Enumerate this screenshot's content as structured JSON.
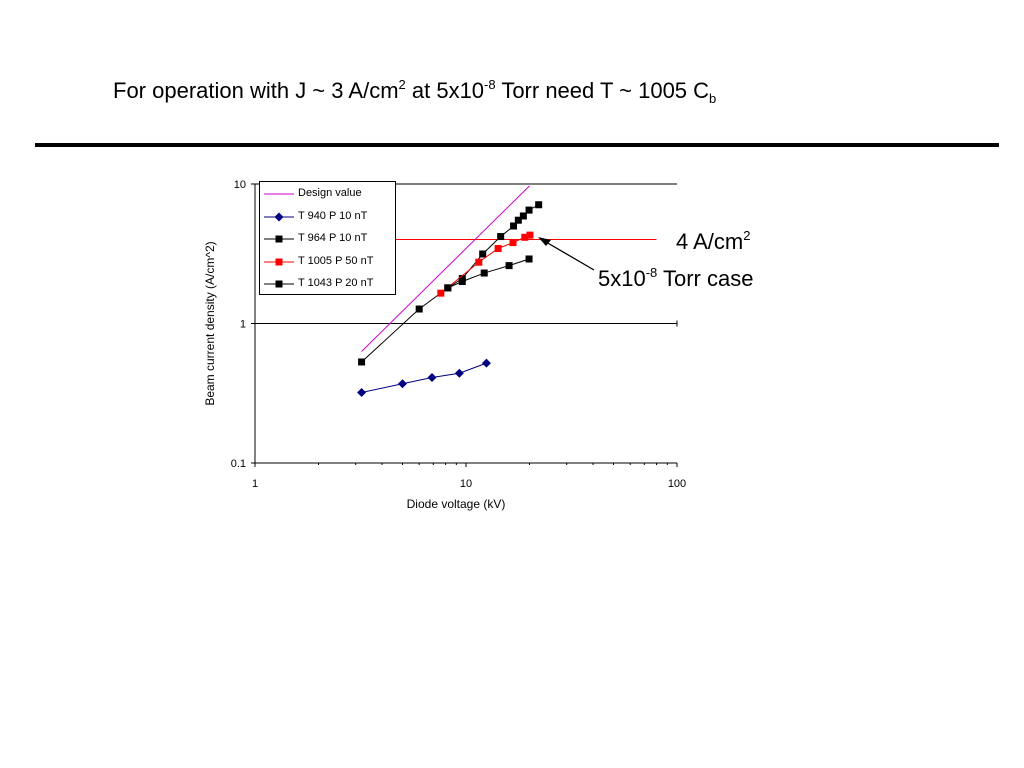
{
  "slide": {
    "title_main": "For operation with J ~ 3 A/cm",
    "title_sup1": "2",
    "title_mid": " at 5x10",
    "title_sup2": "-8",
    "title_end": " Torr need T  ~ 1005 C",
    "title_sub": "b"
  },
  "annotations": {
    "current_label": "4 A/cm",
    "current_sup": "2",
    "case_prefix": "5x10",
    "case_sup": "-8",
    "case_suffix": " Torr case"
  },
  "colors": {
    "design": "#cc00cc",
    "t940": "#000080",
    "t964": "#000000",
    "t1005": "#ff0000",
    "t1043": "#000000",
    "hline": "#ff0000"
  },
  "chart_data": {
    "type": "scatter",
    "xscale": "log",
    "yscale": "log",
    "xlabel": "Diode voltage (kV)",
    "ylabel": "Beam current density (A/cm^2)",
    "xlim": [
      1,
      100
    ],
    "ylim": [
      0.1,
      10
    ],
    "xticks": [
      "1",
      "10",
      "100"
    ],
    "yticks": [
      "10",
      "1",
      "0.1"
    ],
    "legend_position": "top-left",
    "grid": "major y only",
    "reference_line": {
      "y": 4,
      "x": [
        4.5,
        80
      ]
    },
    "series": [
      {
        "name": "Design value",
        "marker": "none",
        "x": [
          3.2,
          20
        ],
        "y": [
          0.63,
          9.7
        ]
      },
      {
        "name": "T 940 P 10 nT",
        "marker": "diamond",
        "x": [
          3.2,
          5.0,
          6.9,
          9.3,
          12.5
        ],
        "y": [
          0.32,
          0.37,
          0.41,
          0.44,
          0.52
        ]
      },
      {
        "name": "T 964 P 10 nT",
        "marker": "square",
        "x": [
          3.2,
          6.0,
          8.2,
          9.6,
          12.0,
          14.6,
          16.8,
          17.7,
          18.7,
          19.9,
          22.1
        ],
        "y": [
          0.53,
          1.27,
          1.8,
          2.1,
          3.15,
          4.2,
          5.0,
          5.5,
          5.9,
          6.5,
          7.1
        ]
      },
      {
        "name": "T 1005 P 50 nT",
        "marker": "square",
        "x": [
          7.6,
          11.5,
          14.2,
          16.7,
          19.0,
          20.1
        ],
        "y": [
          1.65,
          2.75,
          3.45,
          3.8,
          4.15,
          4.3
        ]
      },
      {
        "name": "T 1043 P 20 nT",
        "marker": "square",
        "x": [
          8.2,
          9.6,
          12.2,
          16.0,
          19.9
        ],
        "y": [
          1.8,
          2.0,
          2.3,
          2.6,
          2.9
        ]
      }
    ]
  }
}
